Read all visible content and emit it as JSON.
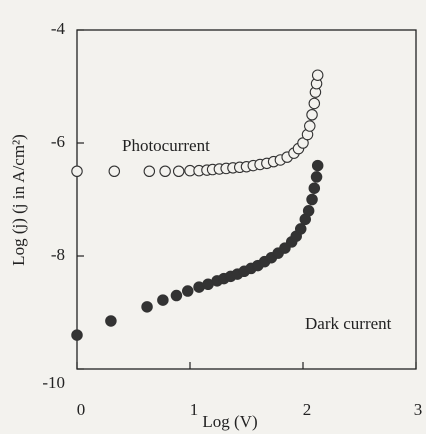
{
  "chart_data": {
    "type": "scatter",
    "x_label": "Log (V)",
    "y_label": "Log (j) (j in A/cm²)",
    "xlim": [
      0,
      3
    ],
    "xticks": [
      0,
      1,
      2,
      3
    ],
    "ylim": [
      -10,
      -4
    ],
    "yticks": [
      -10,
      -8,
      -6,
      -4
    ],
    "annotations": [
      "Photocurrent",
      "Dark current"
    ],
    "series": [
      {
        "name": "Photocurrent",
        "color": "#333333",
        "filled": false,
        "x": [
          0,
          0.33,
          0.64,
          0.78,
          0.9,
          1.0,
          1.08,
          1.15,
          1.2,
          1.26,
          1.32,
          1.38,
          1.44,
          1.5,
          1.56,
          1.62,
          1.68,
          1.74,
          1.8,
          1.86,
          1.92,
          1.96,
          2.0,
          2.04,
          2.06,
          2.08,
          2.1,
          2.11,
          2.12,
          2.13
        ],
        "values": [
          -6.5,
          -6.5,
          -6.5,
          -6.5,
          -6.5,
          -6.49,
          -6.49,
          -6.48,
          -6.47,
          -6.46,
          -6.45,
          -6.44,
          -6.43,
          -6.42,
          -6.4,
          -6.38,
          -6.36,
          -6.33,
          -6.3,
          -6.25,
          -6.18,
          -6.1,
          -6.0,
          -5.85,
          -5.7,
          -5.5,
          -5.3,
          -5.1,
          -4.95,
          -4.8
        ]
      },
      {
        "name": "Dark current",
        "color": "#333333",
        "filled": true,
        "x": [
          0,
          0.3,
          0.62,
          0.76,
          0.88,
          0.98,
          1.08,
          1.16,
          1.24,
          1.3,
          1.36,
          1.42,
          1.48,
          1.54,
          1.6,
          1.66,
          1.72,
          1.78,
          1.84,
          1.9,
          1.94,
          1.98,
          2.02,
          2.05,
          2.08,
          2.1,
          2.12,
          2.13
        ],
        "values": [
          -9.4,
          -9.15,
          -8.9,
          -8.78,
          -8.7,
          -8.62,
          -8.55,
          -8.5,
          -8.44,
          -8.4,
          -8.36,
          -8.32,
          -8.27,
          -8.22,
          -8.17,
          -8.1,
          -8.03,
          -7.95,
          -7.86,
          -7.75,
          -7.65,
          -7.52,
          -7.35,
          -7.2,
          -7.0,
          -6.8,
          -6.6,
          -6.4
        ]
      }
    ]
  }
}
